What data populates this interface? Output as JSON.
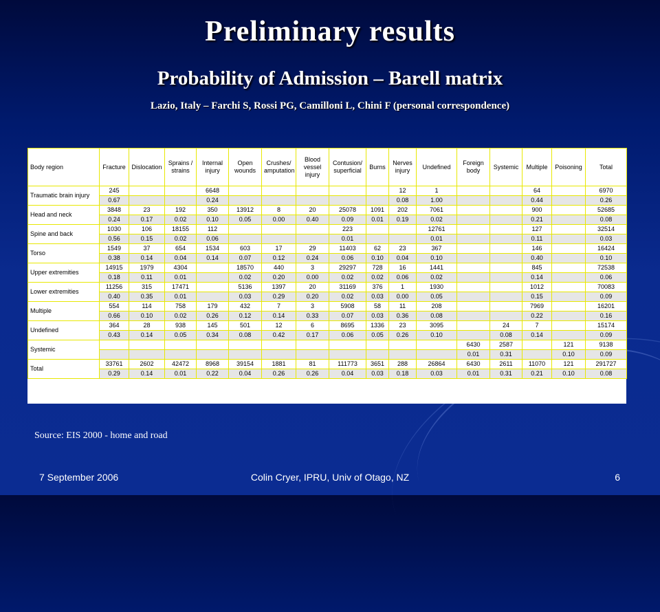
{
  "slide": {
    "title": "Preliminary results",
    "subtitle": "Probability of Admission – Barell matrix",
    "credit": "Lazio, Italy – Farchi S, Rossi PG, Camilloni L, Chini F (personal correspondence)",
    "source": "Source: EIS 2000 - home and road",
    "footer_date": "7 September 2006",
    "footer_author": "Colin Cryer, IPRU, Univ of Otago, NZ",
    "page_number": "6"
  },
  "table": {
    "headers": [
      "Body region",
      "Fracture",
      "Dislocation",
      "Sprains / strains",
      "Internal injury",
      "Open wounds",
      "Crushes/ amputation",
      "Blood vessel injury",
      "Contusion/ superficial",
      "Burns",
      "Nerves injury",
      "Undefined",
      "Foreign body",
      "Systemic",
      "Multiple",
      "Poisoning",
      "Total"
    ],
    "rows": [
      {
        "region": "Traumatic brain injury",
        "counts": [
          "245",
          "",
          "",
          "6648",
          "",
          "",
          "",
          "",
          "",
          "12",
          "1",
          "",
          "",
          "64",
          "",
          "6970"
        ],
        "probs": [
          "0.67",
          "",
          "",
          "0.24",
          "",
          "",
          "",
          "",
          "",
          "0.08",
          "1.00",
          "",
          "",
          "0.44",
          "",
          "0.26"
        ]
      },
      {
        "region": "Head and neck",
        "counts": [
          "3848",
          "23",
          "192",
          "350",
          "13912",
          "8",
          "20",
          "25078",
          "1091",
          "202",
          "7061",
          "",
          "",
          "900",
          "",
          "52685"
        ],
        "probs": [
          "0.24",
          "0.17",
          "0.02",
          "0.10",
          "0.05",
          "0.00",
          "0.40",
          "0.09",
          "0.01",
          "0.19",
          "0.02",
          "",
          "",
          "0.21",
          "",
          "0.08"
        ]
      },
      {
        "region": "Spine and back",
        "counts": [
          "1030",
          "106",
          "18155",
          "112",
          "",
          "",
          "",
          "223",
          "",
          "",
          "12761",
          "",
          "",
          "127",
          "",
          "32514"
        ],
        "probs": [
          "0.56",
          "0.15",
          "0.02",
          "0.06",
          "",
          "",
          "",
          "0.01",
          "",
          "",
          "0.01",
          "",
          "",
          "0.11",
          "",
          "0.03"
        ]
      },
      {
        "region": "Torso",
        "counts": [
          "1549",
          "37",
          "654",
          "1534",
          "603",
          "17",
          "29",
          "11403",
          "62",
          "23",
          "367",
          "",
          "",
          "146",
          "",
          "16424"
        ],
        "probs": [
          "0.38",
          "0.14",
          "0.04",
          "0.14",
          "0.07",
          "0.12",
          "0.24",
          "0.06",
          "0.10",
          "0.04",
          "0.10",
          "",
          "",
          "0.40",
          "",
          "0.10"
        ]
      },
      {
        "region": "Upper extremities",
        "counts": [
          "14915",
          "1979",
          "4304",
          "",
          "18570",
          "440",
          "3",
          "29297",
          "728",
          "16",
          "1441",
          "",
          "",
          "845",
          "",
          "72538"
        ],
        "probs": [
          "0.18",
          "0.11",
          "0.01",
          "",
          "0.02",
          "0.20",
          "0.00",
          "0.02",
          "0.02",
          "0.06",
          "0.02",
          "",
          "",
          "0.14",
          "",
          "0.06"
        ]
      },
      {
        "region": "Lower extremities",
        "counts": [
          "11256",
          "315",
          "17471",
          "",
          "5136",
          "1397",
          "20",
          "31169",
          "376",
          "1",
          "1930",
          "",
          "",
          "1012",
          "",
          "70083"
        ],
        "probs": [
          "0.40",
          "0.35",
          "0.01",
          "",
          "0.03",
          "0.29",
          "0.20",
          "0.02",
          "0.03",
          "0.00",
          "0.05",
          "",
          "",
          "0.15",
          "",
          "0.09"
        ]
      },
      {
        "region": "Multiple",
        "counts": [
          "554",
          "114",
          "758",
          "179",
          "432",
          "7",
          "3",
          "5908",
          "58",
          "11",
          "208",
          "",
          "",
          "7969",
          "",
          "16201"
        ],
        "probs": [
          "0.66",
          "0.10",
          "0.02",
          "0.26",
          "0.12",
          "0.14",
          "0.33",
          "0.07",
          "0.03",
          "0.36",
          "0.08",
          "",
          "",
          "0.22",
          "",
          "0.16"
        ]
      },
      {
        "region": "Undefined",
        "counts": [
          "364",
          "28",
          "938",
          "145",
          "501",
          "12",
          "6",
          "8695",
          "1336",
          "23",
          "3095",
          "",
          "24",
          "7",
          "",
          "15174"
        ],
        "probs": [
          "0.43",
          "0.14",
          "0.05",
          "0.34",
          "0.08",
          "0.42",
          "0.17",
          "0.06",
          "0.05",
          "0.26",
          "0.10",
          "",
          "0.08",
          "0.14",
          "",
          "0.09"
        ]
      },
      {
        "region": "Systemic",
        "counts": [
          "",
          "",
          "",
          "",
          "",
          "",
          "",
          "",
          "",
          "",
          "",
          "6430",
          "2587",
          "",
          "121",
          "9138"
        ],
        "probs": [
          "",
          "",
          "",
          "",
          "",
          "",
          "",
          "",
          "",
          "",
          "",
          "0.01",
          "0.31",
          "",
          "0.10",
          "0.09"
        ]
      },
      {
        "region": "Total",
        "counts": [
          "33761",
          "2602",
          "42472",
          "8968",
          "39154",
          "1881",
          "81",
          "111773",
          "3651",
          "288",
          "26864",
          "6430",
          "2611",
          "11070",
          "121",
          "291727"
        ],
        "probs": [
          "0.29",
          "0.14",
          "0.01",
          "0.22",
          "0.04",
          "0.26",
          "0.26",
          "0.04",
          "0.03",
          "0.18",
          "0.03",
          "0.01",
          "0.31",
          "0.21",
          "0.10",
          "0.08"
        ]
      }
    ]
  }
}
